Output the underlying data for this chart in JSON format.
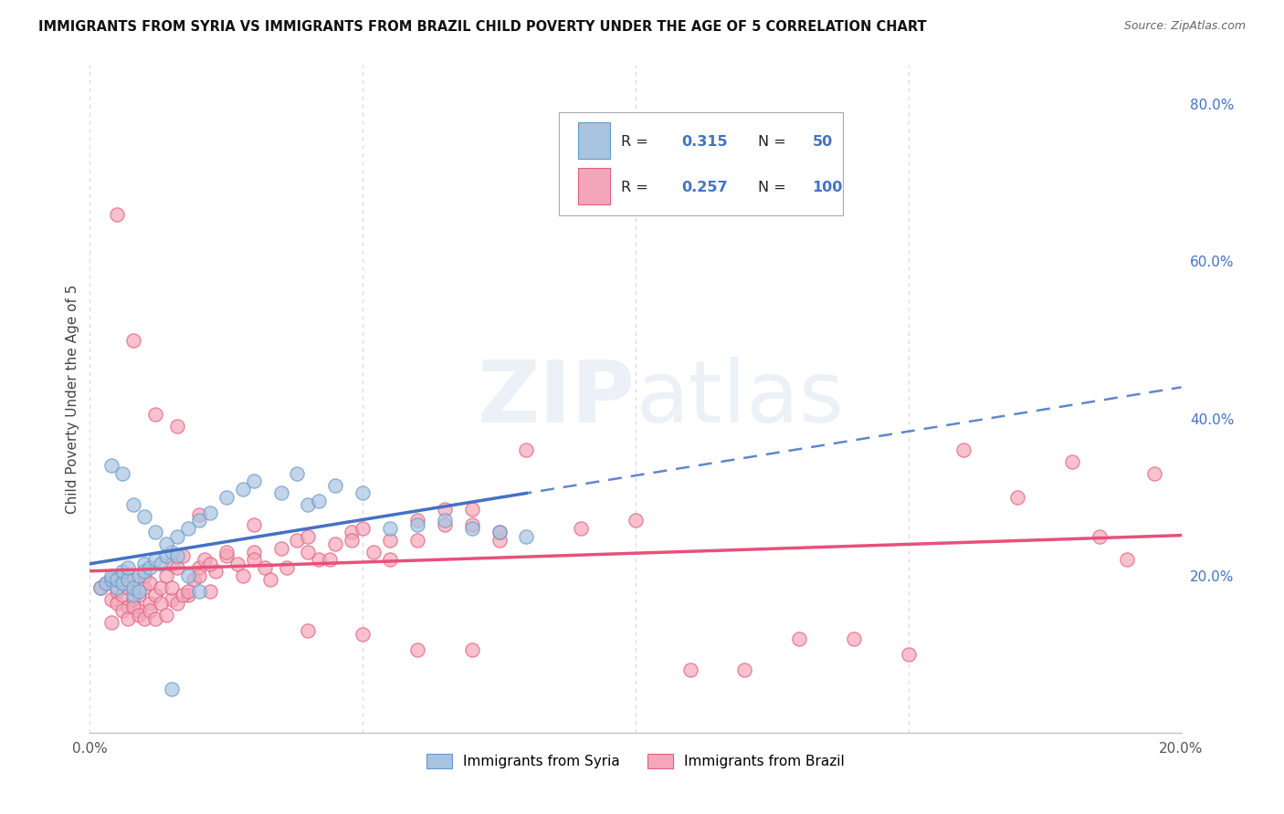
{
  "title": "IMMIGRANTS FROM SYRIA VS IMMIGRANTS FROM BRAZIL CHILD POVERTY UNDER THE AGE OF 5 CORRELATION CHART",
  "source": "Source: ZipAtlas.com",
  "ylabel": "Child Poverty Under the Age of 5",
  "xlim": [
    0.0,
    0.2
  ],
  "ylim": [
    0.0,
    0.85
  ],
  "x_ticks": [
    0.0,
    0.05,
    0.1,
    0.15,
    0.2
  ],
  "x_tick_labels": [
    "0.0%",
    "",
    "",
    "",
    "20.0%"
  ],
  "y_ticks_right": [
    0.2,
    0.4,
    0.6,
    0.8
  ],
  "y_tick_labels_right": [
    "20.0%",
    "40.0%",
    "60.0%",
    "80.0%"
  ],
  "syria_color": "#a8c4e0",
  "brazil_color": "#f4a7b9",
  "syria_edge_color": "#6699cc",
  "brazil_edge_color": "#e06080",
  "syria_line_color": "#4472c4",
  "brazil_line_color": "#e8507a",
  "R_syria": 0.315,
  "N_syria": 50,
  "R_brazil": 0.257,
  "N_brazil": 100,
  "watermark": "ZIPatlas",
  "background_color": "#ffffff",
  "grid_color": "#cccccc",
  "syria_scatter_x": [
    0.002,
    0.003,
    0.004,
    0.004,
    0.005,
    0.005,
    0.006,
    0.006,
    0.007,
    0.007,
    0.008,
    0.008,
    0.009,
    0.009,
    0.01,
    0.01,
    0.011,
    0.012,
    0.013,
    0.014,
    0.015,
    0.016,
    0.018,
    0.02,
    0.022,
    0.025,
    0.028,
    0.03,
    0.035,
    0.038,
    0.04,
    0.042,
    0.045,
    0.05,
    0.055,
    0.06,
    0.065,
    0.07,
    0.075,
    0.08,
    0.004,
    0.006,
    0.008,
    0.01,
    0.012,
    0.014,
    0.016,
    0.018,
    0.02,
    0.015
  ],
  "syria_scatter_y": [
    0.185,
    0.19,
    0.195,
    0.2,
    0.185,
    0.195,
    0.19,
    0.205,
    0.195,
    0.21,
    0.175,
    0.185,
    0.18,
    0.2,
    0.215,
    0.205,
    0.21,
    0.22,
    0.215,
    0.225,
    0.23,
    0.25,
    0.26,
    0.27,
    0.28,
    0.3,
    0.31,
    0.32,
    0.305,
    0.33,
    0.29,
    0.295,
    0.315,
    0.305,
    0.26,
    0.265,
    0.27,
    0.26,
    0.255,
    0.25,
    0.34,
    0.33,
    0.29,
    0.275,
    0.255,
    0.24,
    0.225,
    0.2,
    0.18,
    0.055
  ],
  "brazil_scatter_x": [
    0.002,
    0.003,
    0.004,
    0.005,
    0.005,
    0.006,
    0.006,
    0.007,
    0.007,
    0.008,
    0.008,
    0.009,
    0.009,
    0.01,
    0.01,
    0.011,
    0.011,
    0.012,
    0.013,
    0.014,
    0.015,
    0.015,
    0.016,
    0.017,
    0.018,
    0.019,
    0.02,
    0.021,
    0.022,
    0.023,
    0.025,
    0.027,
    0.03,
    0.032,
    0.035,
    0.038,
    0.04,
    0.042,
    0.045,
    0.048,
    0.05,
    0.055,
    0.06,
    0.065,
    0.07,
    0.075,
    0.08,
    0.09,
    0.1,
    0.11,
    0.12,
    0.13,
    0.14,
    0.15,
    0.16,
    0.17,
    0.18,
    0.185,
    0.19,
    0.195,
    0.004,
    0.006,
    0.007,
    0.008,
    0.009,
    0.01,
    0.011,
    0.012,
    0.013,
    0.014,
    0.015,
    0.016,
    0.017,
    0.018,
    0.02,
    0.022,
    0.025,
    0.028,
    0.03,
    0.033,
    0.036,
    0.04,
    0.044,
    0.048,
    0.052,
    0.055,
    0.06,
    0.065,
    0.07,
    0.075,
    0.005,
    0.008,
    0.012,
    0.016,
    0.02,
    0.03,
    0.04,
    0.05,
    0.06,
    0.07
  ],
  "brazil_scatter_y": [
    0.185,
    0.19,
    0.17,
    0.18,
    0.165,
    0.175,
    0.195,
    0.16,
    0.185,
    0.17,
    0.195,
    0.155,
    0.175,
    0.185,
    0.2,
    0.165,
    0.19,
    0.175,
    0.185,
    0.2,
    0.215,
    0.17,
    0.21,
    0.225,
    0.175,
    0.195,
    0.21,
    0.22,
    0.18,
    0.205,
    0.225,
    0.215,
    0.23,
    0.21,
    0.235,
    0.245,
    0.25,
    0.22,
    0.24,
    0.255,
    0.26,
    0.245,
    0.27,
    0.285,
    0.265,
    0.245,
    0.36,
    0.26,
    0.27,
    0.08,
    0.08,
    0.12,
    0.12,
    0.1,
    0.36,
    0.3,
    0.345,
    0.25,
    0.22,
    0.33,
    0.14,
    0.155,
    0.145,
    0.16,
    0.15,
    0.145,
    0.155,
    0.145,
    0.165,
    0.15,
    0.185,
    0.165,
    0.175,
    0.18,
    0.2,
    0.215,
    0.23,
    0.2,
    0.22,
    0.195,
    0.21,
    0.23,
    0.22,
    0.245,
    0.23,
    0.22,
    0.245,
    0.265,
    0.285,
    0.255,
    0.66,
    0.5,
    0.405,
    0.39,
    0.278,
    0.265,
    0.13,
    0.125,
    0.105,
    0.105
  ]
}
